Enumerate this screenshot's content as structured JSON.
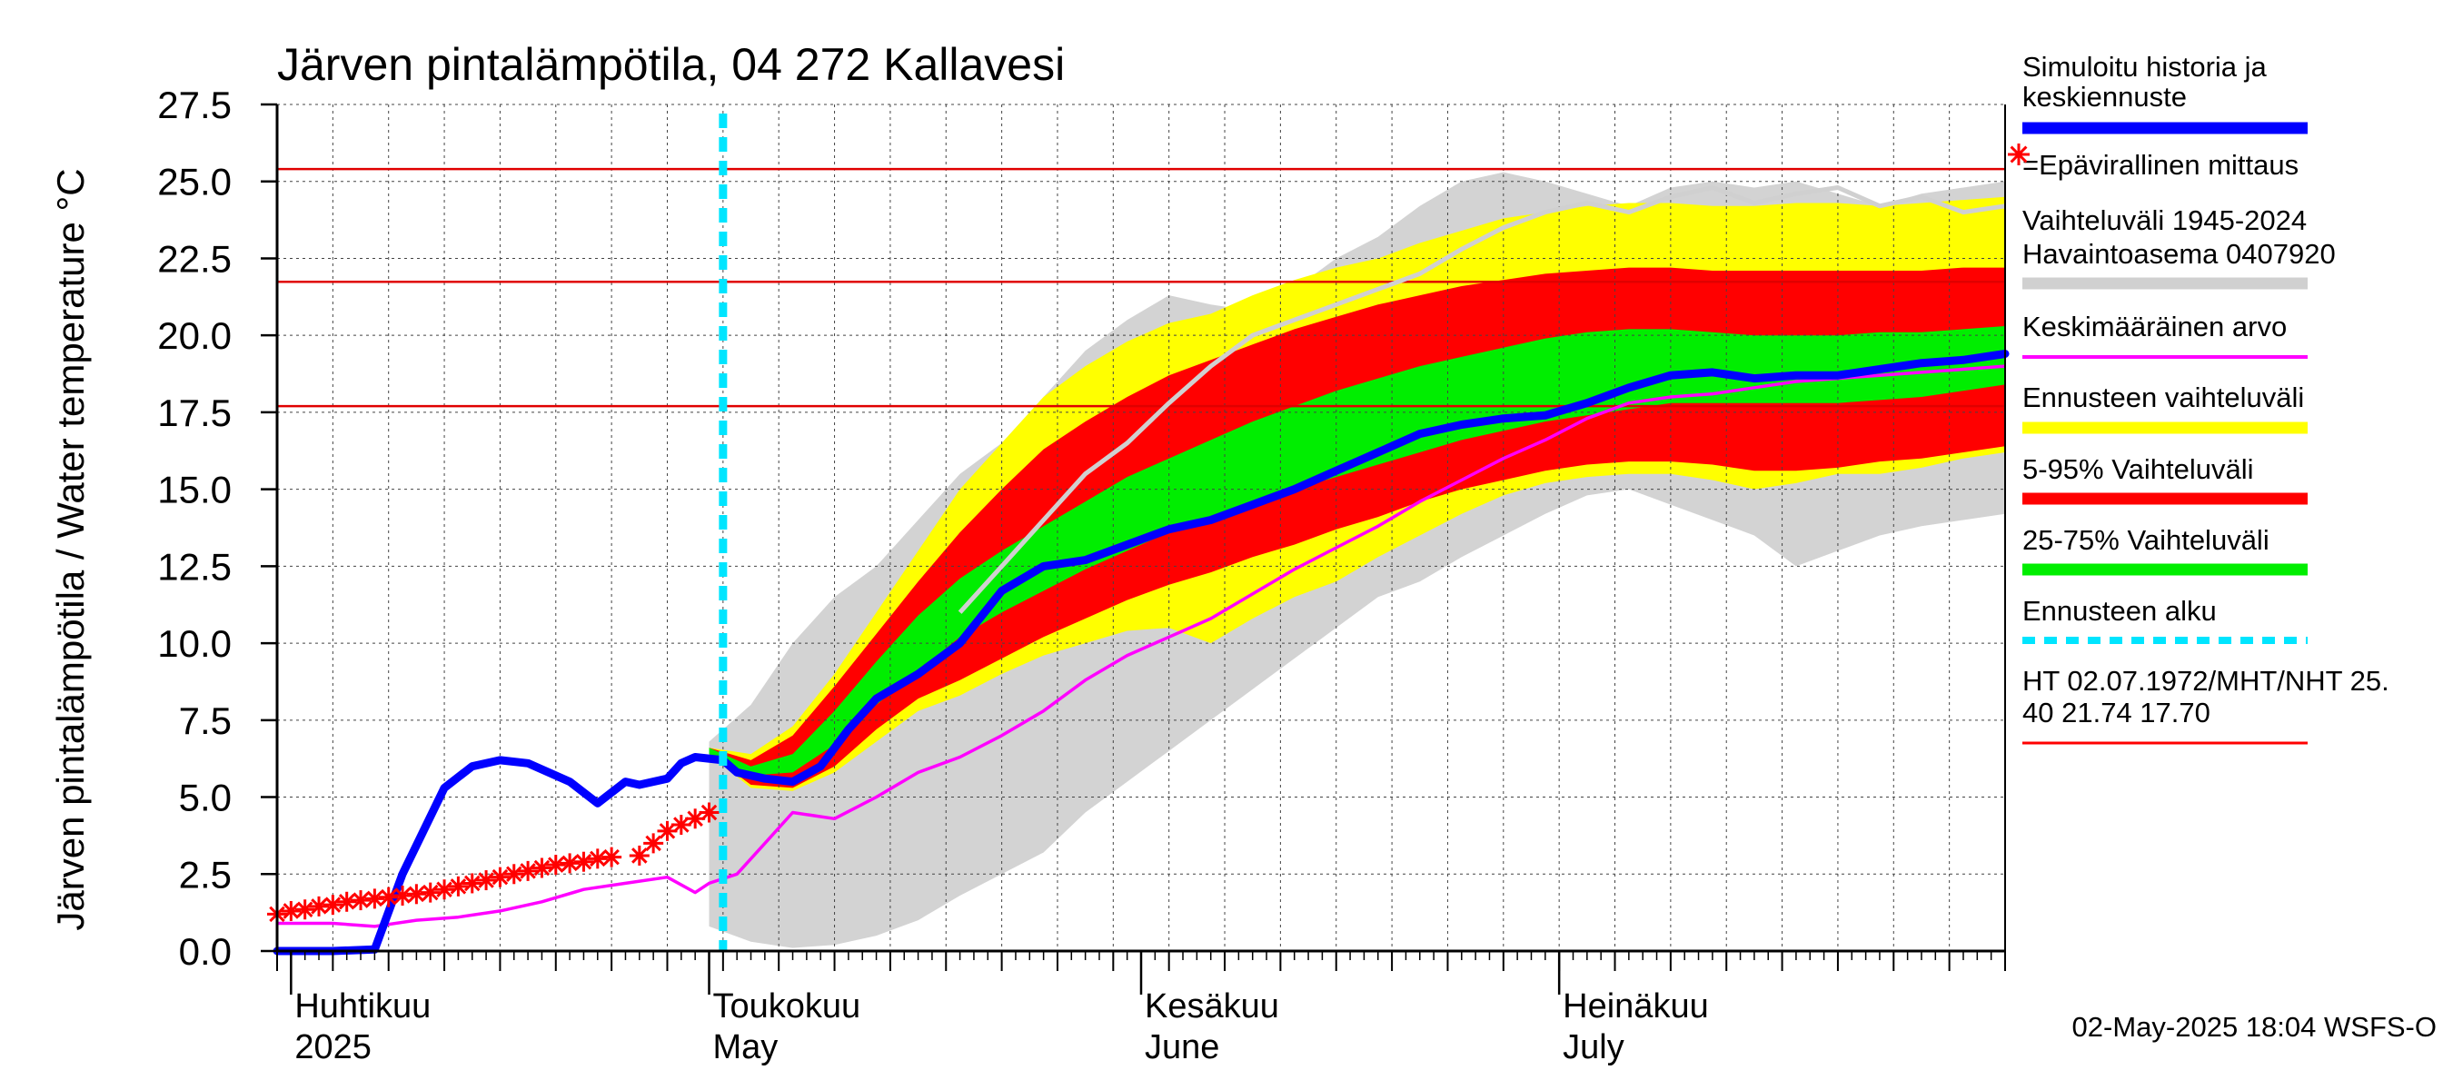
{
  "chart_data": {
    "type": "area",
    "title": "Järven pintalämpötila, 04 272 Kallavesi",
    "ylabel": "Järven pintalämpötila / Water temperature °C",
    "ylim": [
      0,
      27.5
    ],
    "yticks": [
      "0.0",
      "2.5",
      "5.0",
      "7.5",
      "10.0",
      "12.5",
      "15.0",
      "17.5",
      "20.0",
      "22.5",
      "25.0",
      "27.5"
    ],
    "x_domain": [
      "2025-03-31",
      "2025-08-02"
    ],
    "month_labels": [
      {
        "line1": "Huhtikuu",
        "line2": "2025",
        "date": "2025-04-01"
      },
      {
        "line1": "Toukokuu",
        "line2": "May",
        "date": "2025-05-01"
      },
      {
        "line1": "Kesäkuu",
        "line2": "June",
        "date": "2025-06-01"
      },
      {
        "line1": "Heinäkuu",
        "line2": "July",
        "date": "2025-07-01"
      }
    ],
    "grid": true,
    "legend_position": "right",
    "forecast_start": "2025-05-02",
    "reference_lines": [
      {
        "name": "HT",
        "value": 25.4
      },
      {
        "name": "MHT",
        "value": 21.74
      },
      {
        "name": "NHT",
        "value": 17.7
      }
    ],
    "bands_x": [
      "2025-05-01",
      "2025-05-04",
      "2025-05-07",
      "2025-05-10",
      "2025-05-13",
      "2025-05-16",
      "2025-05-19",
      "2025-05-22",
      "2025-05-25",
      "2025-05-28",
      "2025-05-31",
      "2025-06-03",
      "2025-06-06",
      "2025-06-09",
      "2025-06-12",
      "2025-06-15",
      "2025-06-18",
      "2025-06-21",
      "2025-06-24",
      "2025-06-27",
      "2025-06-30",
      "2025-07-03",
      "2025-07-06",
      "2025-07-09",
      "2025-07-12",
      "2025-07-15",
      "2025-07-18",
      "2025-07-21",
      "2025-07-24",
      "2025-07-27",
      "2025-07-30",
      "2025-08-02"
    ],
    "historical_range": {
      "name": "Vaihteluväli 1945-2024 Havaintoasema 0407920",
      "low": [
        0.8,
        0.3,
        0.1,
        0.2,
        0.5,
        1.0,
        1.8,
        2.5,
        3.2,
        4.5,
        5.5,
        6.5,
        7.5,
        8.5,
        9.5,
        10.5,
        11.5,
        12.0,
        12.8,
        13.5,
        14.2,
        14.8,
        15.0,
        14.5,
        14.0,
        13.5,
        12.5,
        13.0,
        13.5,
        13.8,
        14.0,
        14.2
      ],
      "high": [
        6.8,
        8.0,
        10.0,
        11.5,
        12.5,
        14.0,
        15.5,
        16.5,
        18.0,
        19.5,
        20.5,
        21.3,
        21.0,
        20.8,
        21.5,
        22.5,
        23.2,
        24.2,
        25.0,
        25.3,
        25.0,
        24.6,
        24.2,
        24.8,
        25.0,
        24.8,
        25.0,
        24.6,
        24.2,
        24.6,
        24.8,
        25.0
      ]
    },
    "forecast_range": {
      "name": "Ennusteen vaihteluväli",
      "low": [
        6.4,
        5.3,
        5.2,
        5.8,
        6.8,
        7.8,
        8.3,
        9.0,
        9.6,
        10.0,
        10.4,
        10.5,
        10.0,
        10.8,
        11.5,
        12.0,
        12.8,
        13.5,
        14.2,
        14.8,
        15.2,
        15.4,
        15.5,
        15.5,
        15.3,
        15.0,
        15.2,
        15.5,
        15.5,
        15.7,
        16.0,
        16.2
      ],
      "high": [
        6.6,
        6.4,
        7.3,
        9.0,
        11.0,
        13.0,
        15.0,
        16.5,
        18.0,
        19.0,
        19.8,
        20.4,
        20.7,
        21.3,
        21.8,
        22.2,
        22.5,
        23.0,
        23.4,
        23.8,
        24.0,
        24.2,
        24.3,
        24.3,
        24.2,
        24.2,
        24.3,
        24.3,
        24.2,
        24.3,
        24.4,
        24.5
      ]
    },
    "range_5_95": {
      "name": "5-95% Vaihteluväli",
      "low": [
        6.4,
        5.4,
        5.3,
        6.0,
        7.2,
        8.2,
        8.8,
        9.5,
        10.2,
        10.8,
        11.4,
        11.9,
        12.3,
        12.8,
        13.2,
        13.7,
        14.1,
        14.6,
        15.0,
        15.3,
        15.6,
        15.8,
        15.9,
        15.9,
        15.8,
        15.6,
        15.6,
        15.7,
        15.9,
        16.0,
        16.2,
        16.4
      ],
      "high": [
        6.6,
        6.2,
        7.0,
        8.6,
        10.3,
        12.0,
        13.6,
        15.0,
        16.3,
        17.2,
        18.0,
        18.7,
        19.2,
        19.7,
        20.2,
        20.6,
        21.0,
        21.3,
        21.6,
        21.8,
        22.0,
        22.1,
        22.2,
        22.2,
        22.1,
        22.1,
        22.1,
        22.1,
        22.1,
        22.1,
        22.2,
        22.2
      ]
    },
    "range_25_75": {
      "name": "25-75% Vaihteluväli",
      "low": [
        6.4,
        5.7,
        5.8,
        6.7,
        8.0,
        9.1,
        10.2,
        11.0,
        11.7,
        12.4,
        13.0,
        13.6,
        14.0,
        14.5,
        15.0,
        15.4,
        15.8,
        16.2,
        16.6,
        16.9,
        17.2,
        17.4,
        17.6,
        17.8,
        17.8,
        17.8,
        17.8,
        17.8,
        17.9,
        18.0,
        18.2,
        18.4
      ],
      "high": [
        6.6,
        6.0,
        6.4,
        7.8,
        9.4,
        10.9,
        12.1,
        13.0,
        13.8,
        14.6,
        15.4,
        16.0,
        16.6,
        17.2,
        17.7,
        18.2,
        18.6,
        19.0,
        19.3,
        19.6,
        19.9,
        20.1,
        20.2,
        20.2,
        20.1,
        20.0,
        20.0,
        20.0,
        20.1,
        20.1,
        20.2,
        20.3
      ]
    },
    "series": [
      {
        "name": "Simuloitu historia ja keskiennuste",
        "color": "#0000ff",
        "x": [
          "2025-03-31",
          "2025-04-04",
          "2025-04-07",
          "2025-04-09",
          "2025-04-12",
          "2025-04-14",
          "2025-04-16",
          "2025-04-18",
          "2025-04-21",
          "2025-04-23",
          "2025-04-25",
          "2025-04-26",
          "2025-04-28",
          "2025-04-29",
          "2025-04-30",
          "2025-05-02",
          "2025-05-03",
          "2025-05-05",
          "2025-05-07",
          "2025-05-09",
          "2025-05-11",
          "2025-05-13",
          "2025-05-16",
          "2025-05-19",
          "2025-05-22",
          "2025-05-25",
          "2025-05-28",
          "2025-05-31",
          "2025-06-03",
          "2025-06-06",
          "2025-06-09",
          "2025-06-12",
          "2025-06-15",
          "2025-06-18",
          "2025-06-21",
          "2025-06-24",
          "2025-06-27",
          "2025-06-30",
          "2025-07-03",
          "2025-07-06",
          "2025-07-09",
          "2025-07-12",
          "2025-07-15",
          "2025-07-18",
          "2025-07-21",
          "2025-07-24",
          "2025-07-27",
          "2025-07-30",
          "2025-08-02"
        ],
        "y": [
          0.0,
          0.0,
          0.05,
          2.5,
          5.3,
          6.0,
          6.2,
          6.1,
          5.5,
          4.8,
          5.5,
          5.4,
          5.6,
          6.1,
          6.3,
          6.2,
          5.8,
          5.6,
          5.5,
          6.0,
          7.2,
          8.2,
          9.0,
          10.0,
          11.7,
          12.5,
          12.7,
          13.2,
          13.7,
          14.0,
          14.5,
          15.0,
          15.6,
          16.2,
          16.8,
          17.1,
          17.3,
          17.4,
          17.8,
          18.3,
          18.7,
          18.8,
          18.6,
          18.7,
          18.7,
          18.9,
          19.1,
          19.2,
          19.4
        ]
      },
      {
        "name": "Keskimääräinen arvo",
        "color": "#ff00ff",
        "x": [
          "2025-03-31",
          "2025-04-04",
          "2025-04-07",
          "2025-04-10",
          "2025-04-13",
          "2025-04-16",
          "2025-04-19",
          "2025-04-22",
          "2025-04-25",
          "2025-04-28",
          "2025-04-30",
          "2025-05-01",
          "2025-05-03",
          "2025-05-05",
          "2025-05-07",
          "2025-05-10",
          "2025-05-13",
          "2025-05-16",
          "2025-05-19",
          "2025-05-22",
          "2025-05-25",
          "2025-05-28",
          "2025-05-31",
          "2025-06-03",
          "2025-06-06",
          "2025-06-09",
          "2025-06-12",
          "2025-06-15",
          "2025-06-18",
          "2025-06-21",
          "2025-06-24",
          "2025-06-27",
          "2025-06-30",
          "2025-07-03",
          "2025-07-06",
          "2025-07-09",
          "2025-07-12",
          "2025-07-15",
          "2025-07-18",
          "2025-07-21",
          "2025-07-24",
          "2025-07-27",
          "2025-07-30",
          "2025-08-02"
        ],
        "y": [
          0.9,
          0.9,
          0.8,
          1.0,
          1.1,
          1.3,
          1.6,
          2.0,
          2.2,
          2.4,
          1.9,
          2.2,
          2.5,
          3.5,
          4.5,
          4.3,
          5.0,
          5.8,
          6.3,
          7.0,
          7.8,
          8.8,
          9.6,
          10.2,
          10.8,
          11.6,
          12.4,
          13.1,
          13.8,
          14.6,
          15.3,
          16.0,
          16.6,
          17.3,
          17.8,
          18.0,
          18.1,
          18.3,
          18.5,
          18.6,
          18.7,
          18.8,
          18.9,
          19.0
        ]
      },
      {
        "name": "Simulated high (grey line)",
        "color": "#d0d0d0",
        "x": [
          "2025-05-19",
          "2025-05-22",
          "2025-05-25",
          "2025-05-28",
          "2025-05-31",
          "2025-06-03",
          "2025-06-06",
          "2025-06-09",
          "2025-06-12",
          "2025-06-15",
          "2025-06-18",
          "2025-06-21",
          "2025-06-24",
          "2025-06-27",
          "2025-06-30",
          "2025-07-03",
          "2025-07-06",
          "2025-07-09",
          "2025-07-12",
          "2025-07-15",
          "2025-07-18",
          "2025-07-21",
          "2025-07-24",
          "2025-07-27",
          "2025-07-30",
          "2025-08-02"
        ],
        "y": [
          11.0,
          12.5,
          14.0,
          15.5,
          16.5,
          17.8,
          19.0,
          20.0,
          20.5,
          21.0,
          21.5,
          22.0,
          22.8,
          23.5,
          24.0,
          24.3,
          24.0,
          24.5,
          24.8,
          24.3,
          24.6,
          24.8,
          24.2,
          24.5,
          24.0,
          24.2
        ]
      }
    ],
    "observations": {
      "name": "=Epävirallinen mittaus",
      "color": "#ff0000",
      "x": [
        "2025-03-31",
        "2025-04-01",
        "2025-04-02",
        "2025-04-03",
        "2025-04-04",
        "2025-04-05",
        "2025-04-06",
        "2025-04-07",
        "2025-04-08",
        "2025-04-09",
        "2025-04-10",
        "2025-04-11",
        "2025-04-12",
        "2025-04-13",
        "2025-04-14",
        "2025-04-15",
        "2025-04-16",
        "2025-04-17",
        "2025-04-18",
        "2025-04-19",
        "2025-04-20",
        "2025-04-21",
        "2025-04-22",
        "2025-04-23",
        "2025-04-24",
        "2025-04-26",
        "2025-04-27",
        "2025-04-28",
        "2025-04-29",
        "2025-04-30",
        "2025-05-01"
      ],
      "y": [
        1.2,
        1.3,
        1.35,
        1.45,
        1.5,
        1.6,
        1.65,
        1.7,
        1.75,
        1.8,
        1.85,
        1.9,
        2.0,
        2.1,
        2.2,
        2.3,
        2.4,
        2.5,
        2.6,
        2.7,
        2.8,
        2.85,
        2.9,
        3.0,
        3.05,
        3.1,
        3.5,
        3.9,
        4.1,
        4.3,
        4.5
      ]
    }
  },
  "legend": {
    "items": [
      {
        "text1": "Simuloitu historia ja",
        "text2": "keskiennuste",
        "color": "#0000ff",
        "style": "line"
      },
      {
        "text1": "=Epävirallinen mittaus",
        "text2": "",
        "color": "#ff0000",
        "style": "star"
      },
      {
        "text1": "Vaihteluväli 1945-2024",
        "text2": " Havaintoasema 0407920",
        "color": "#d0d0d0",
        "style": "line"
      },
      {
        "text1": "Keskimääräinen arvo",
        "text2": "",
        "color": "#ff00ff",
        "style": "thin"
      },
      {
        "text1": "Ennusteen vaihteluväli",
        "text2": "",
        "color": "#ffff00",
        "style": "line"
      },
      {
        "text1": "5-95% Vaihteluväli",
        "text2": "",
        "color": "#ff0000",
        "style": "line"
      },
      {
        "text1": "25-75% Vaihteluväli",
        "text2": "",
        "color": "#00ee00",
        "style": "line"
      },
      {
        "text1": "Ennusteen alku",
        "text2": "",
        "color": "#00e5ff",
        "style": "dash"
      },
      {
        "text1": "HT 02.07.1972/MHT/NHT 25.",
        "text2": "40 21.74 17.70",
        "color": "#ff0000",
        "style": "thinred"
      }
    ]
  },
  "colors": {
    "grey_band": "#d3d3d3",
    "yellow_band": "#ffff00",
    "red_band": "#ff0000",
    "green_band": "#00ee00",
    "mean_line": "#0000ff",
    "average_line": "#ff00ff",
    "forecast_start": "#00e5ff",
    "reference_line": "#e00000"
  },
  "footer": "02-May-2025 18:04 WSFS-O"
}
